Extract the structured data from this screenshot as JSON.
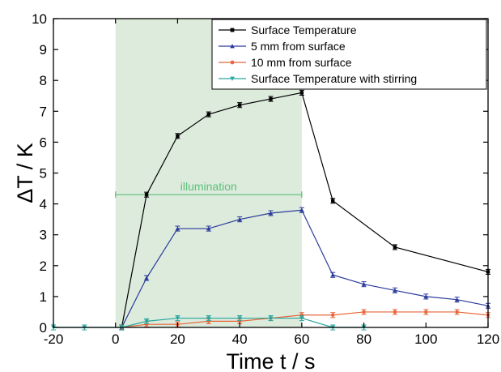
{
  "chart_data": {
    "type": "line",
    "xlabel": "Time t / s",
    "ylabel": "ΔT / K",
    "xlim": [
      -20,
      120
    ],
    "ylim": [
      0,
      10
    ],
    "xticks": [
      -20,
      0,
      20,
      40,
      60,
      80,
      100,
      120
    ],
    "yticks": [
      0,
      1,
      2,
      3,
      4,
      5,
      6,
      7,
      8,
      9,
      10
    ],
    "grid": false,
    "legend_position": "top-right",
    "shaded_region": {
      "x": [
        0,
        60
      ],
      "color": "#dcebdc",
      "label": "illumination",
      "label_color": "#5dbf7a",
      "arrow_y": 4.3
    },
    "series": [
      {
        "name": "Surface Temperature",
        "color": "#000000",
        "marker": "square",
        "x": [
          2,
          10,
          20,
          30,
          40,
          50,
          60,
          70,
          90,
          120
        ],
        "y": [
          0,
          4.3,
          6.2,
          6.9,
          7.2,
          7.4,
          7.6,
          4.1,
          2.6,
          1.8
        ],
        "err": [
          0.08,
          0.08,
          0.08,
          0.08,
          0.08,
          0.08,
          0.08,
          0.08,
          0.08,
          0.08
        ]
      },
      {
        "name": "5 mm from surface",
        "color": "#2b3a9a",
        "marker": "triangle-up",
        "x": [
          2,
          10,
          20,
          30,
          40,
          50,
          60,
          70,
          80,
          90,
          100,
          110,
          120
        ],
        "y": [
          0,
          1.6,
          3.2,
          3.2,
          3.5,
          3.7,
          3.8,
          1.7,
          1.4,
          1.2,
          1.0,
          0.9,
          0.7
        ],
        "err": [
          0.08,
          0.08,
          0.08,
          0.08,
          0.08,
          0.08,
          0.08,
          0.08,
          0.08,
          0.08,
          0.08,
          0.08,
          0.08
        ]
      },
      {
        "name": "10 mm from surface",
        "color": "#e8663a",
        "marker": "circle",
        "x": [
          2,
          10,
          20,
          30,
          40,
          50,
          60,
          70,
          80,
          90,
          100,
          110,
          120
        ],
        "y": [
          0,
          0.1,
          0.1,
          0.2,
          0.2,
          0.3,
          0.4,
          0.4,
          0.5,
          0.5,
          0.5,
          0.5,
          0.4
        ],
        "err": [
          0.08,
          0.08,
          0.08,
          0.08,
          0.08,
          0.08,
          0.08,
          0.08,
          0.08,
          0.08,
          0.08,
          0.08,
          0.08
        ]
      },
      {
        "name": "Surface Temperature with stirring",
        "color": "#2aa7a0",
        "marker": "triangle-down",
        "x": [
          -20,
          -10,
          2,
          10,
          20,
          30,
          40,
          50,
          60,
          70,
          80
        ],
        "y": [
          0,
          0,
          0,
          0.2,
          0.3,
          0.3,
          0.3,
          0.3,
          0.3,
          0,
          0
        ],
        "err": [
          0.08,
          0.08,
          0.08,
          0.08,
          0.08,
          0.08,
          0.08,
          0.08,
          0.08,
          0.08,
          0.08
        ]
      }
    ]
  }
}
